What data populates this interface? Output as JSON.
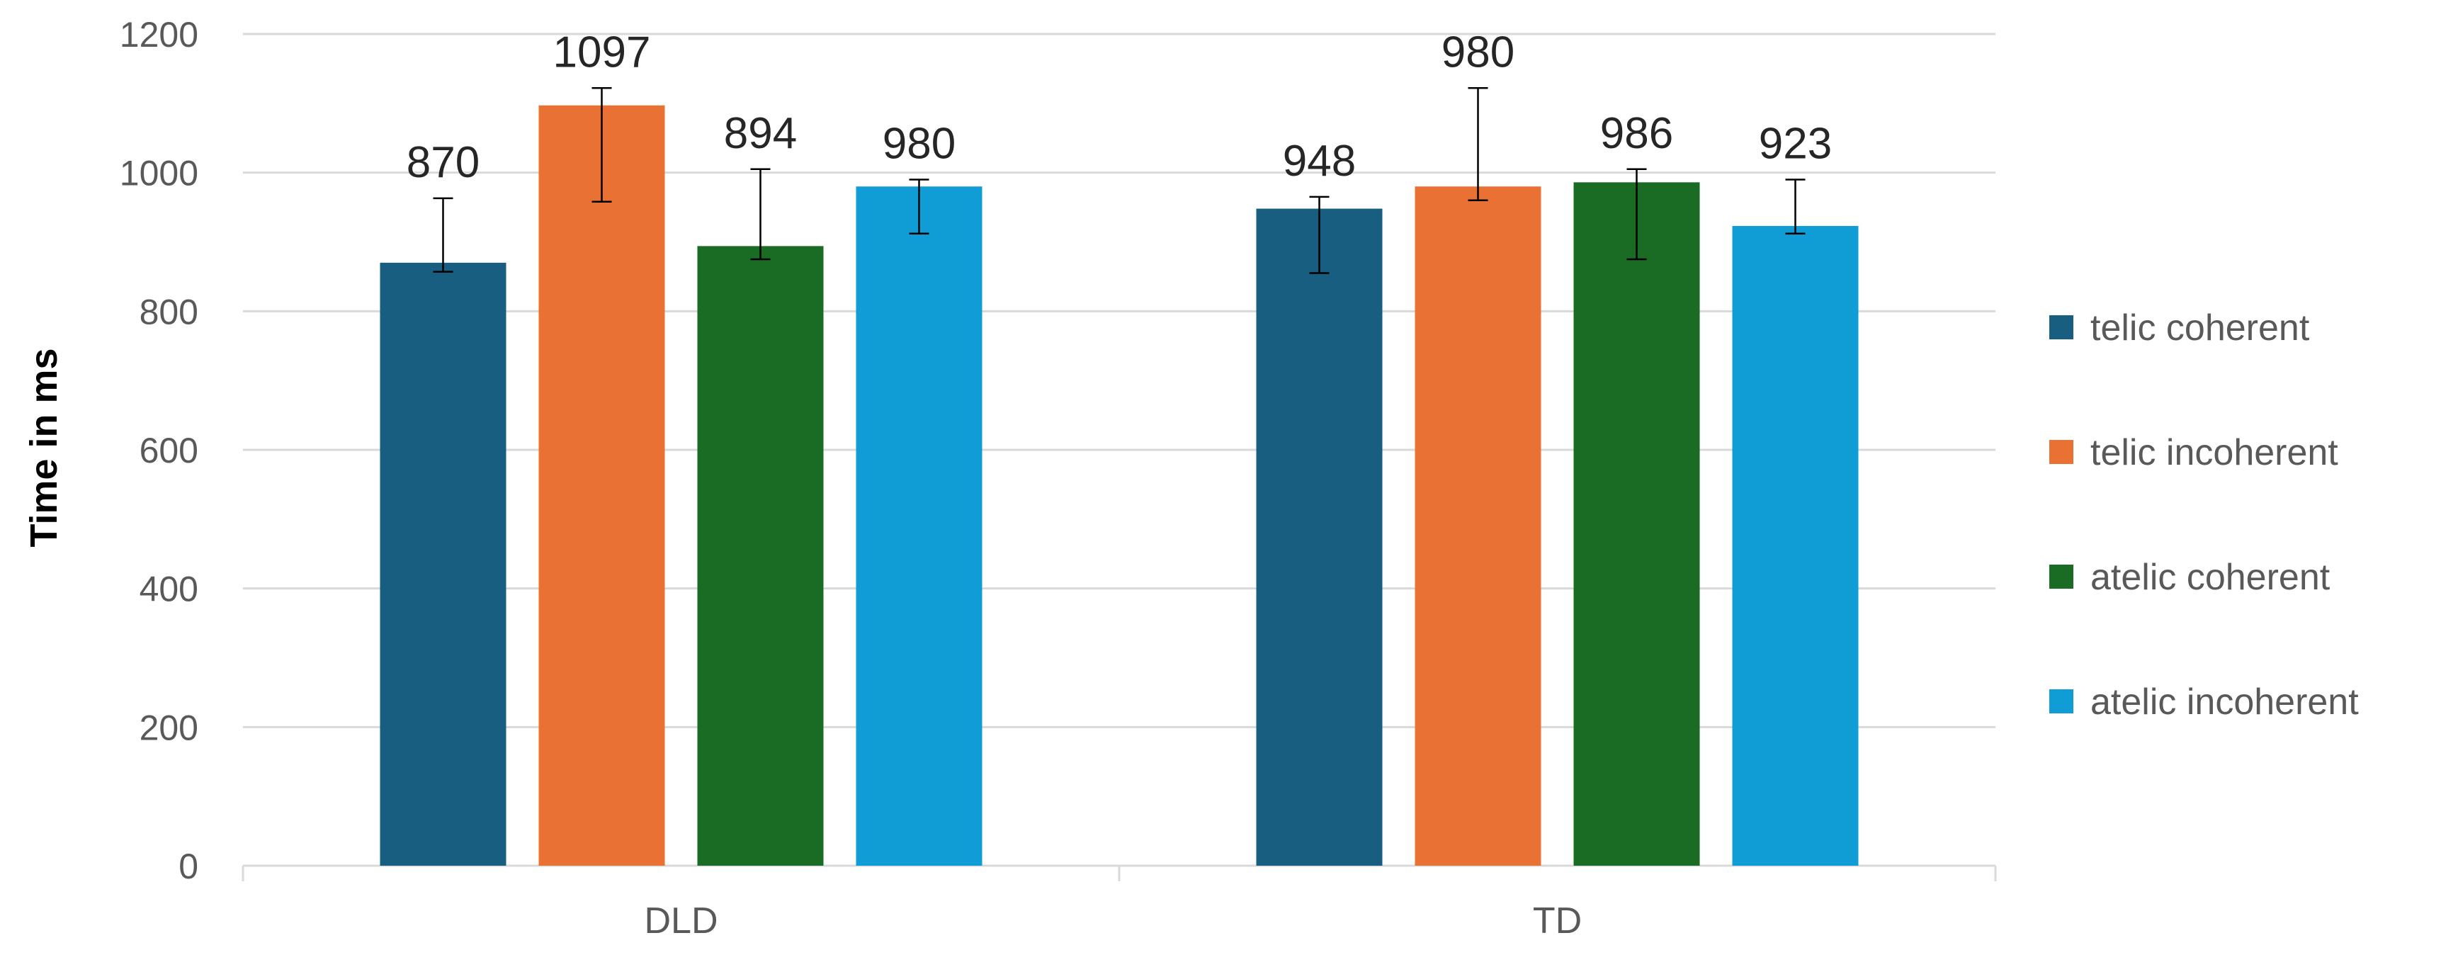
{
  "chart_data": {
    "type": "bar",
    "categories": [
      "DLD",
      "TD"
    ],
    "series": [
      {
        "name": "telic coherent",
        "color": "#175E81",
        "values": [
          870,
          948
        ],
        "error_low": [
          857,
          855
        ],
        "error_high": [
          963,
          965
        ]
      },
      {
        "name": "telic incoherent",
        "color": "#E97133",
        "values": [
          1097,
          980
        ],
        "error_low": [
          958,
          960
        ],
        "error_high": [
          1122,
          1122
        ]
      },
      {
        "name": "atelic coherent",
        "color": "#1A6B24",
        "values": [
          894,
          986
        ],
        "error_low": [
          875,
          875
        ],
        "error_high": [
          1005,
          1005
        ]
      },
      {
        "name": "atelic incoherent",
        "color": "#109CD4",
        "values": [
          980,
          923
        ],
        "error_low": [
          912,
          912
        ],
        "error_high": [
          990,
          990
        ]
      }
    ],
    "data_labels": [
      [
        "870",
        "948"
      ],
      [
        "1097",
        "980"
      ],
      [
        "894",
        "986"
      ],
      [
        "980",
        "923"
      ]
    ],
    "xlabel": "",
    "ylabel": "Time in ms",
    "ylim": [
      0,
      1200
    ],
    "yticks": [
      0,
      200,
      400,
      600,
      800,
      1000,
      1200
    ],
    "grid": true,
    "legend_position": "right"
  }
}
